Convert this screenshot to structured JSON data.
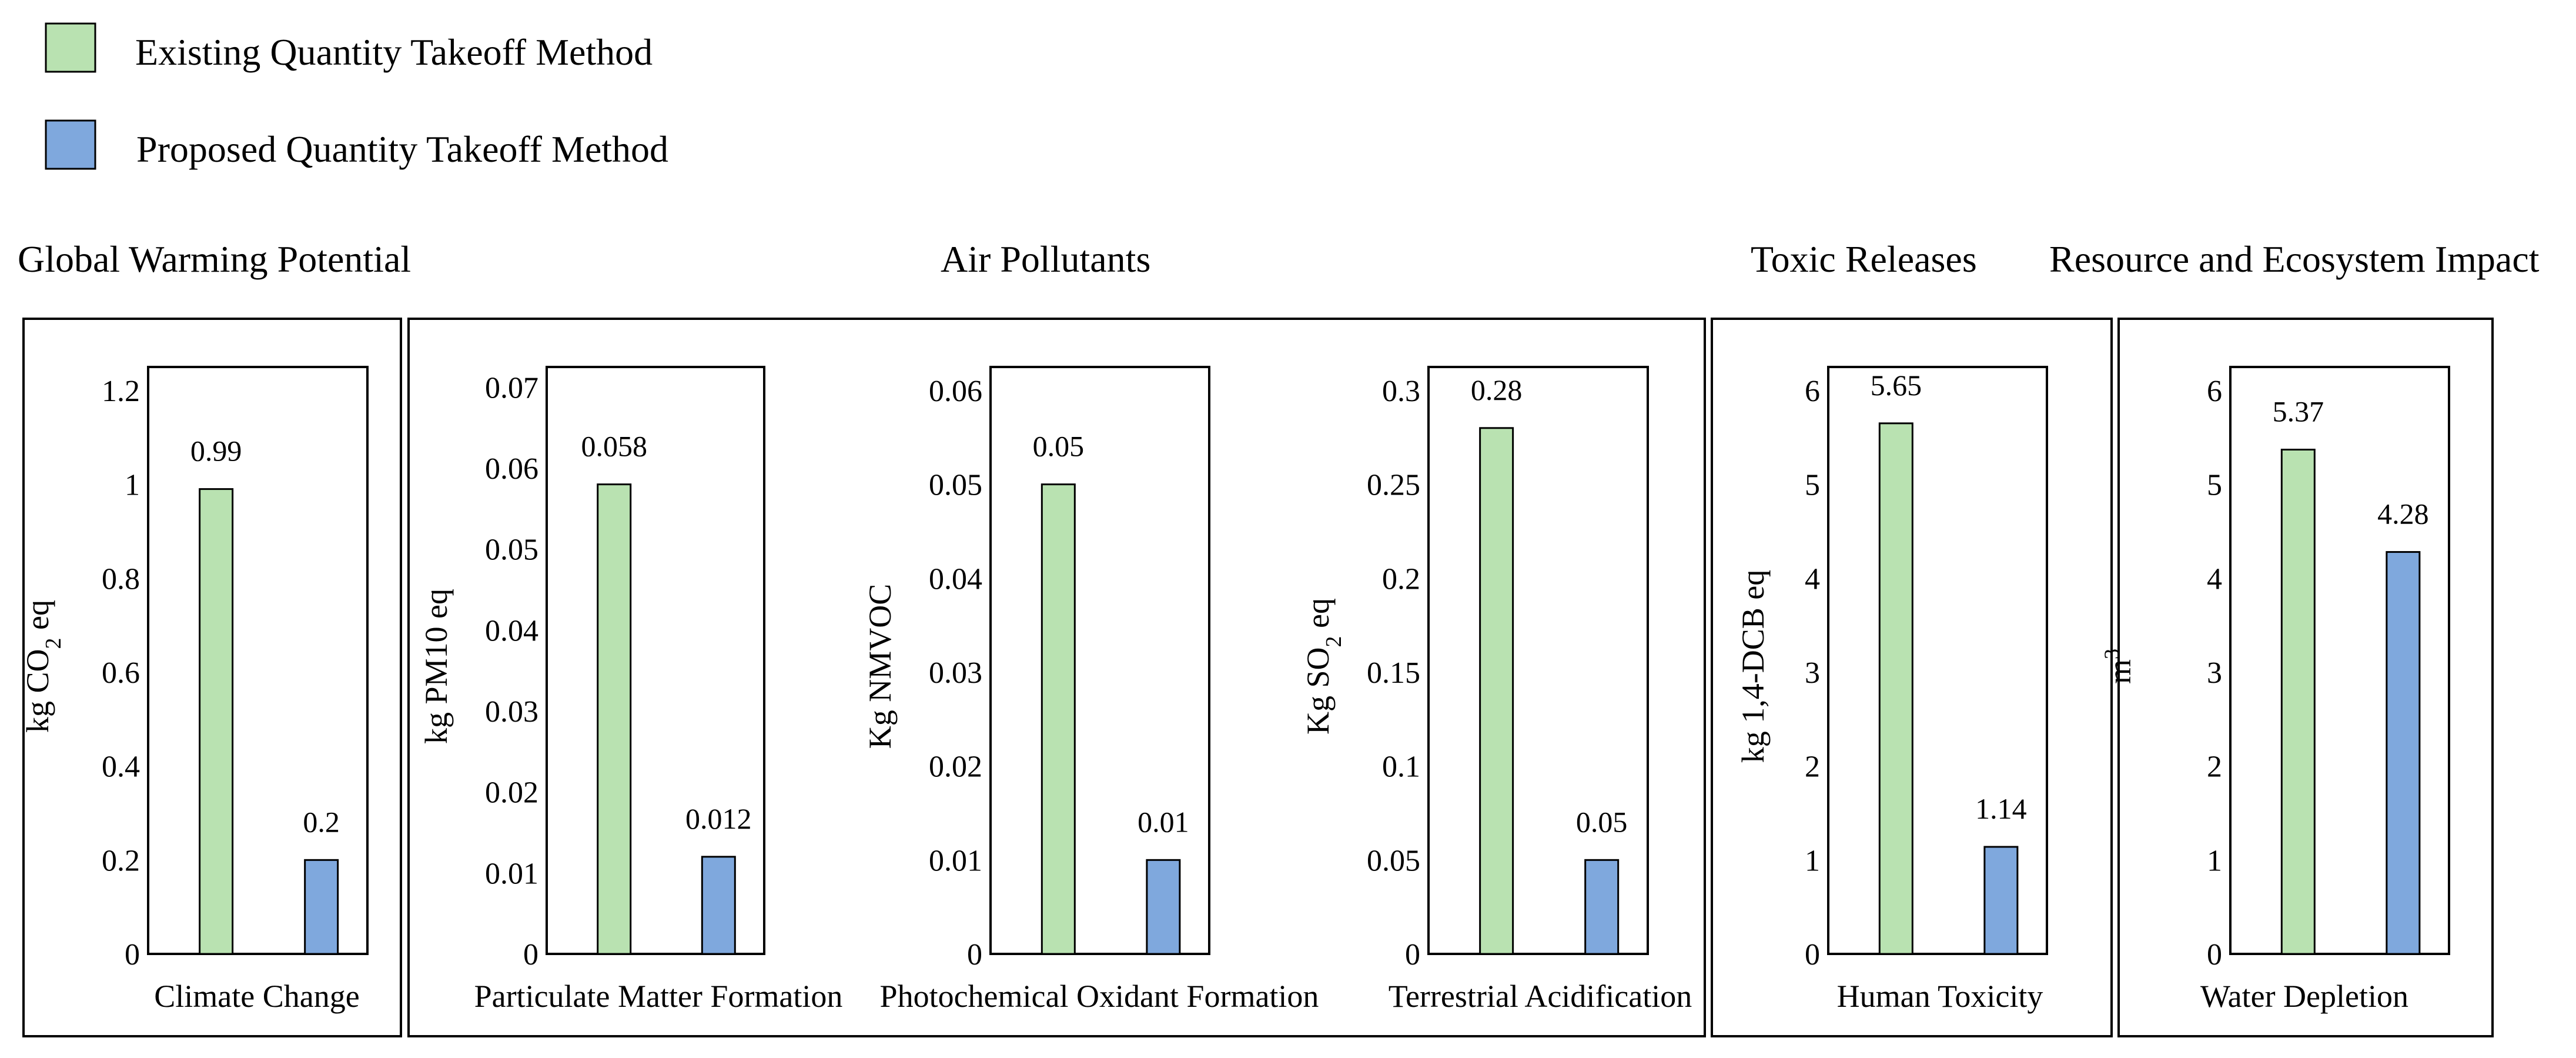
{
  "legend": [
    {
      "label": "Existing Quantity Takeoff Method",
      "color": "#b9e2b1"
    },
    {
      "label": "Proposed Quantity Takeoff Method",
      "color": "#7fa8dd"
    }
  ],
  "groups": [
    {
      "title": "Global Warming Potential"
    },
    {
      "title": "Air Pollutants"
    },
    {
      "title": "Toxic Releases"
    },
    {
      "title": "Resource and Ecosystem Impact"
    }
  ],
  "chart_data": [
    {
      "type": "bar",
      "group": "Global Warming Potential",
      "title": "Climate Change",
      "xlabel": "Climate Change",
      "ylabel": "kg CO",
      "ylabel_sub": "2",
      "ylabel_tail": " eq",
      "ylim": [
        0,
        1.25
      ],
      "yticks": [
        "0",
        "0.2",
        "0.4",
        "0.6",
        "0.8",
        "1",
        "1.2"
      ],
      "ytick_values": [
        0,
        0.2,
        0.4,
        0.6,
        0.8,
        1,
        1.2
      ],
      "series": [
        {
          "name": "Existing Quantity Takeoff Method",
          "values": [
            0.99
          ],
          "labels": [
            "0.99"
          ]
        },
        {
          "name": "Proposed Quantity Takeoff Method",
          "values": [
            0.2
          ],
          "labels": [
            "0.2"
          ]
        }
      ]
    },
    {
      "type": "bar",
      "group": "Air Pollutants",
      "title": "Particulate Matter Formation",
      "xlabel": "Particulate Matter Formation",
      "ylabel": "kg PM10 eq",
      "ylabel_sub": "",
      "ylabel_tail": "",
      "ylim": [
        0,
        0.0725
      ],
      "yticks": [
        "0",
        "0.01",
        "0.02",
        "0.03",
        "0.04",
        "0.05",
        "0.06",
        "0.07"
      ],
      "ytick_values": [
        0,
        0.01,
        0.02,
        0.03,
        0.04,
        0.05,
        0.06,
        0.07
      ],
      "series": [
        {
          "name": "Existing Quantity Takeoff Method",
          "values": [
            0.058
          ],
          "labels": [
            "0.058"
          ]
        },
        {
          "name": "Proposed Quantity Takeoff Method",
          "values": [
            0.012
          ],
          "labels": [
            "0.012"
          ]
        }
      ]
    },
    {
      "type": "bar",
      "group": "Air Pollutants",
      "title": "Photochemical Oxidant Formation",
      "xlabel": "Photochemical Oxidant Formation",
      "ylabel": "Kg NMVOC",
      "ylabel_sub": "",
      "ylabel_tail": "",
      "ylim": [
        0,
        0.0625
      ],
      "yticks": [
        "0",
        "0.01",
        "0.02",
        "0.03",
        "0.04",
        "0.05",
        "0.06"
      ],
      "ytick_values": [
        0,
        0.01,
        0.02,
        0.03,
        0.04,
        0.05,
        0.06
      ],
      "series": [
        {
          "name": "Existing Quantity Takeoff Method",
          "values": [
            0.05
          ],
          "labels": [
            "0.05"
          ]
        },
        {
          "name": "Proposed Quantity Takeoff Method",
          "values": [
            0.01
          ],
          "labels": [
            "0.01"
          ]
        }
      ]
    },
    {
      "type": "bar",
      "group": "Air Pollutants",
      "title": "Terrestrial Acidification",
      "xlabel": "Terrestrial Acidification",
      "ylabel": "Kg SO",
      "ylabel_sub": "2",
      "ylabel_tail": " eq",
      "ylim": [
        0,
        0.3125
      ],
      "yticks": [
        "0",
        "0.05",
        "0.1",
        "0.15",
        "0.2",
        "0.25",
        "0.3"
      ],
      "ytick_values": [
        0,
        0.05,
        0.1,
        0.15,
        0.2,
        0.25,
        0.3
      ],
      "series": [
        {
          "name": "Existing Quantity Takeoff Method",
          "values": [
            0.28
          ],
          "labels": [
            "0.28"
          ]
        },
        {
          "name": "Proposed Quantity Takeoff Method",
          "values": [
            0.05
          ],
          "labels": [
            "0.05"
          ]
        }
      ]
    },
    {
      "type": "bar",
      "group": "Toxic Releases",
      "title": "Human Toxicity",
      "xlabel": "Human Toxicity",
      "ylabel": "kg 1,4-DCB eq",
      "ylabel_sub": "",
      "ylabel_tail": "",
      "ylim": [
        0,
        6.25
      ],
      "yticks": [
        "0",
        "1",
        "2",
        "3",
        "4",
        "5",
        "6"
      ],
      "ytick_values": [
        0,
        1,
        2,
        3,
        4,
        5,
        6
      ],
      "series": [
        {
          "name": "Existing Quantity Takeoff Method",
          "values": [
            5.65
          ],
          "labels": [
            "5.65"
          ]
        },
        {
          "name": "Proposed Quantity Takeoff Method",
          "values": [
            1.14
          ],
          "labels": [
            "1.14"
          ]
        }
      ]
    },
    {
      "type": "bar",
      "group": "Resource and Ecosystem Impact",
      "title": "Water Depletion",
      "xlabel": "Water Depletion",
      "ylabel": "m",
      "ylabel_sup": "3",
      "ylabel_sub": "",
      "ylabel_tail": "",
      "ylim": [
        0,
        6.25
      ],
      "yticks": [
        "0",
        "1",
        "2",
        "3",
        "4",
        "5",
        "6"
      ],
      "ytick_values": [
        0,
        1,
        2,
        3,
        4,
        5,
        6
      ],
      "series": [
        {
          "name": "Existing Quantity Takeoff Method",
          "values": [
            5.37
          ],
          "labels": [
            "5.37"
          ]
        },
        {
          "name": "Proposed Quantity Takeoff Method",
          "values": [
            4.28
          ],
          "labels": [
            "4.28"
          ]
        }
      ]
    }
  ]
}
